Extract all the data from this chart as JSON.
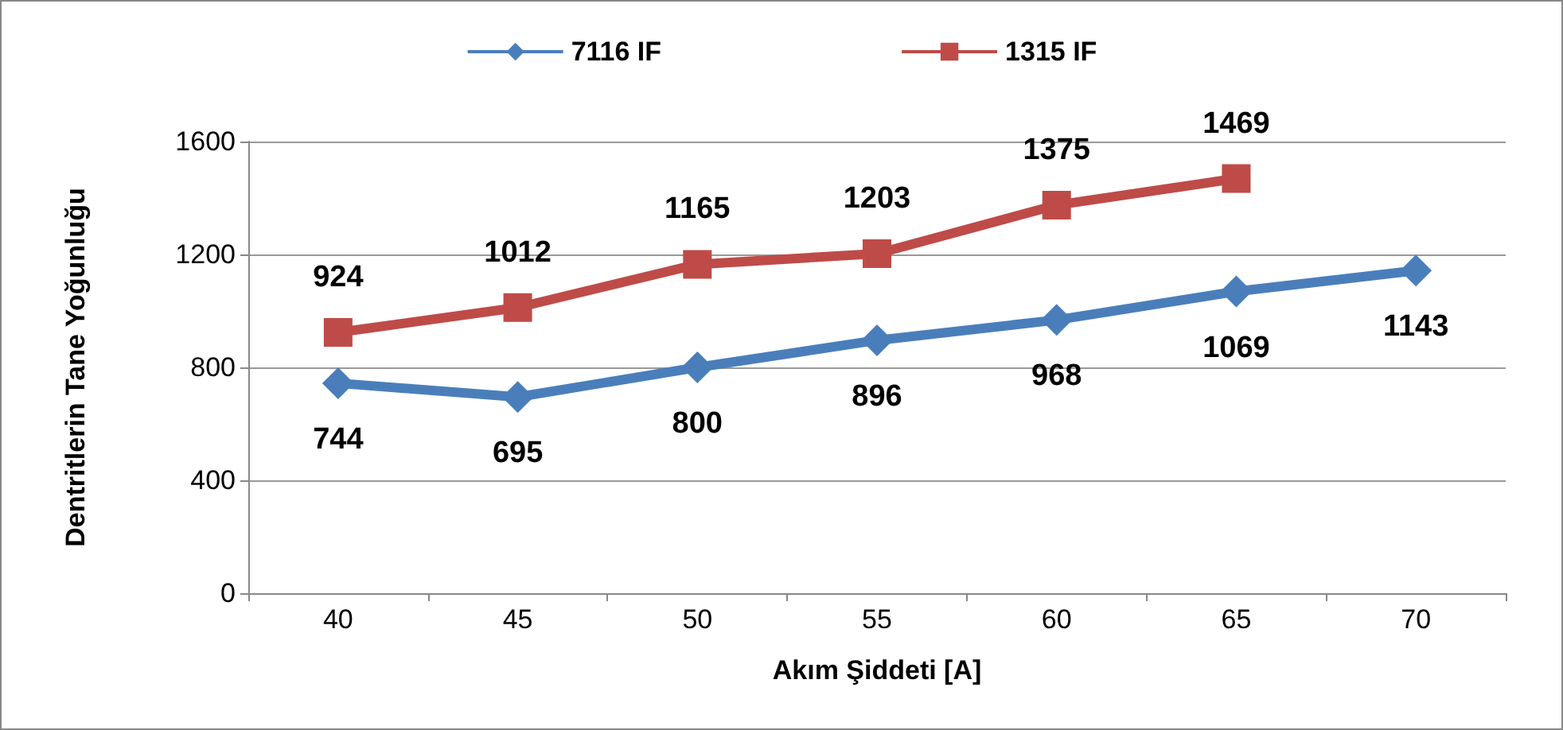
{
  "chart_data": {
    "type": "line",
    "xlabel": "Akım Şiddeti [A]",
    "ylabel": "Dentritlerin Tane Yoğunluğu",
    "categories": [
      "40",
      "45",
      "50",
      "55",
      "60",
      "65",
      "70"
    ],
    "series": [
      {
        "name": "7116 IF",
        "color": "#4a7ebb",
        "marker": "diamond",
        "values": [
          744,
          695,
          800,
          896,
          968,
          1069,
          1143
        ]
      },
      {
        "name": "1315 IF",
        "color": "#be4b48",
        "marker": "square",
        "values": [
          924,
          1012,
          1165,
          1203,
          1375,
          1469,
          null
        ]
      }
    ],
    "ylim": [
      0,
      1600
    ],
    "yticks": [
      0,
      400,
      800,
      1200,
      1600
    ],
    "grid": "y",
    "legend": "top",
    "data_labels": true
  }
}
